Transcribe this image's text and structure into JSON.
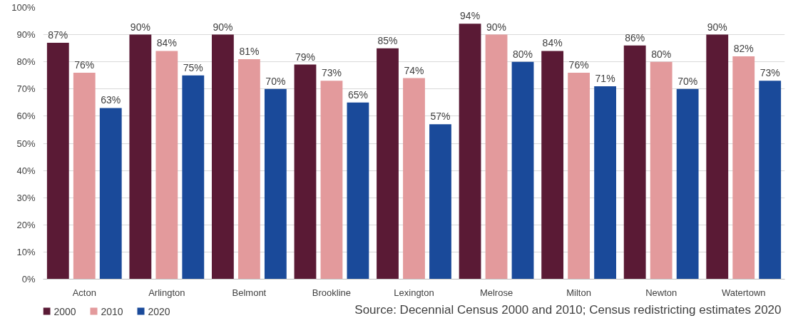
{
  "chart_data": {
    "type": "bar",
    "categories": [
      "Acton",
      "Arlington",
      "Belmont",
      "Brookline",
      "Lexington",
      "Melrose",
      "Milton",
      "Newton",
      "Watertown"
    ],
    "series": [
      {
        "name": "2000",
        "color": "#5a1a35",
        "values": [
          87,
          90,
          90,
          79,
          85,
          94,
          84,
          86,
          90
        ],
        "value_labels": [
          "87%",
          "90%",
          "90%",
          "79%",
          "85%",
          "94%",
          "84%",
          "86%",
          "90%"
        ]
      },
      {
        "name": "2010",
        "color": "#e39a9c",
        "values": [
          76,
          84,
          81,
          73,
          74,
          90,
          76,
          80,
          82
        ],
        "value_labels": [
          "76%",
          "84%",
          "81%",
          "73%",
          "74%",
          "90%",
          "76%",
          "80%",
          "82%"
        ]
      },
      {
        "name": "2020",
        "color": "#1a4a9a",
        "values": [
          63,
          75,
          70,
          65,
          57,
          80,
          71,
          70,
          73
        ],
        "value_labels": [
          "63%",
          "75%",
          "70%",
          "65%",
          "57%",
          "80%",
          "71%",
          "70%",
          "73%"
        ]
      }
    ],
    "ylim": [
      0,
      100
    ],
    "yticks": [
      {
        "value": 0,
        "label": "0%"
      },
      {
        "value": 10,
        "label": "10%"
      },
      {
        "value": 20,
        "label": "20%"
      },
      {
        "value": 30,
        "label": "30%"
      },
      {
        "value": 40,
        "label": "40%"
      },
      {
        "value": 50,
        "label": "50%"
      },
      {
        "value": 60,
        "label": "60%"
      },
      {
        "value": 70,
        "label": "70%"
      },
      {
        "value": 80,
        "label": "80%"
      },
      {
        "value": 90,
        "label": "90%"
      },
      {
        "value": 100,
        "label": "100%"
      }
    ],
    "grid": "y",
    "legend": "bottom left",
    "annotations": [
      "Source: Decennial Census 2000 and 2010; Census redistricting estimates 2020"
    ]
  }
}
